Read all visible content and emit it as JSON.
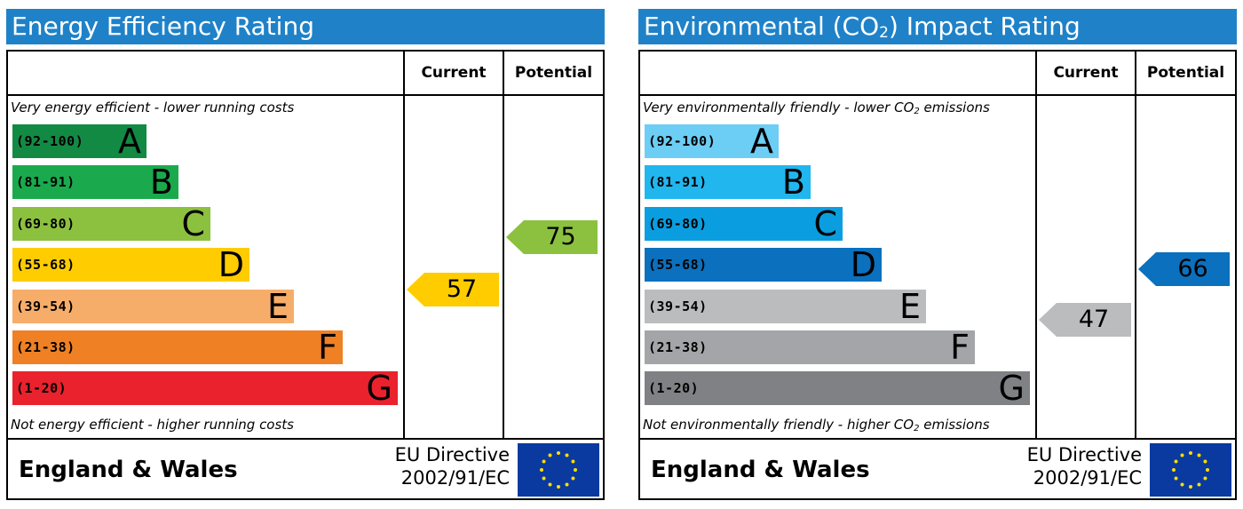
{
  "chart_data": [
    {
      "type": "bar",
      "title": "Energy Efficiency Rating",
      "columns": [
        "Current",
        "Potential"
      ],
      "note_top": "Very energy efficient - lower running costs",
      "note_bottom": "Not energy efficient - higher running costs",
      "bands": [
        {
          "range": "(92-100)",
          "letter": "A",
          "min": 92,
          "max": 100,
          "color": "#138a43",
          "range_color": "#000000"
        },
        {
          "range": "(81-91)",
          "letter": "B",
          "min": 81,
          "max": 91,
          "color": "#1aaa4d",
          "range_color": "#000000"
        },
        {
          "range": "(69-80)",
          "letter": "C",
          "min": 69,
          "max": 80,
          "color": "#8cc13f",
          "range_color": "#000000"
        },
        {
          "range": "(55-68)",
          "letter": "D",
          "min": 55,
          "max": 68,
          "color": "#ffcc00",
          "range_color": "#000000"
        },
        {
          "range": "(39-54)",
          "letter": "E",
          "min": 39,
          "max": 54,
          "color": "#f7ad6a",
          "range_color": "#000000"
        },
        {
          "range": "(21-38)",
          "letter": "F",
          "min": 21,
          "max": 38,
          "color": "#f08024",
          "range_color": "#000000"
        },
        {
          "range": "(1-20)",
          "letter": "G",
          "min": 1,
          "max": 20,
          "color": "#e9222e",
          "range_color": "#000000"
        }
      ],
      "current": {
        "value": 57,
        "color": "#ffcc00"
      },
      "potential": {
        "value": 75,
        "color": "#8cc13f"
      },
      "country": "England & Wales",
      "directive_line1": "EU Directive",
      "directive_line2": "2002/91/EC"
    },
    {
      "type": "bar",
      "title_main": "Environmental (CO",
      "title_sub": "2",
      "title_end": ") Impact Rating",
      "columns": [
        "Current",
        "Potential"
      ],
      "note_top_main": "Very environmentally friendly - lower CO",
      "note_top_sub": "2",
      "note_top_end": " emissions",
      "note_bottom_main": "Not environmentally friendly - higher CO",
      "note_bottom_sub": "2",
      "note_bottom_end": " emissions",
      "bands": [
        {
          "range": "(92-100)",
          "letter": "A",
          "min": 92,
          "max": 100,
          "color": "#6ccdf5",
          "range_color": "#000000"
        },
        {
          "range": "(81-91)",
          "letter": "B",
          "min": 81,
          "max": 91,
          "color": "#22b6ee",
          "range_color": "#000000"
        },
        {
          "range": "(69-80)",
          "letter": "C",
          "min": 69,
          "max": 80,
          "color": "#0a9ee0",
          "range_color": "#000000"
        },
        {
          "range": "(55-68)",
          "letter": "D",
          "min": 55,
          "max": 68,
          "color": "#0b70be",
          "range_color": "#000000"
        },
        {
          "range": "(39-54)",
          "letter": "E",
          "min": 39,
          "max": 54,
          "color": "#bbbcbe",
          "range_color": "#000000"
        },
        {
          "range": "(21-38)",
          "letter": "F",
          "min": 21,
          "max": 38,
          "color": "#a4a5a8",
          "range_color": "#000000"
        },
        {
          "range": "(1-20)",
          "letter": "G",
          "min": 1,
          "max": 20,
          "color": "#808184",
          "range_color": "#000000"
        }
      ],
      "current": {
        "value": 47,
        "color": "#bbbcbe"
      },
      "potential": {
        "value": 66,
        "color": "#0b70be"
      },
      "country": "England & Wales",
      "directive_line1": "EU Directive",
      "directive_line2": "2002/91/EC"
    }
  ]
}
